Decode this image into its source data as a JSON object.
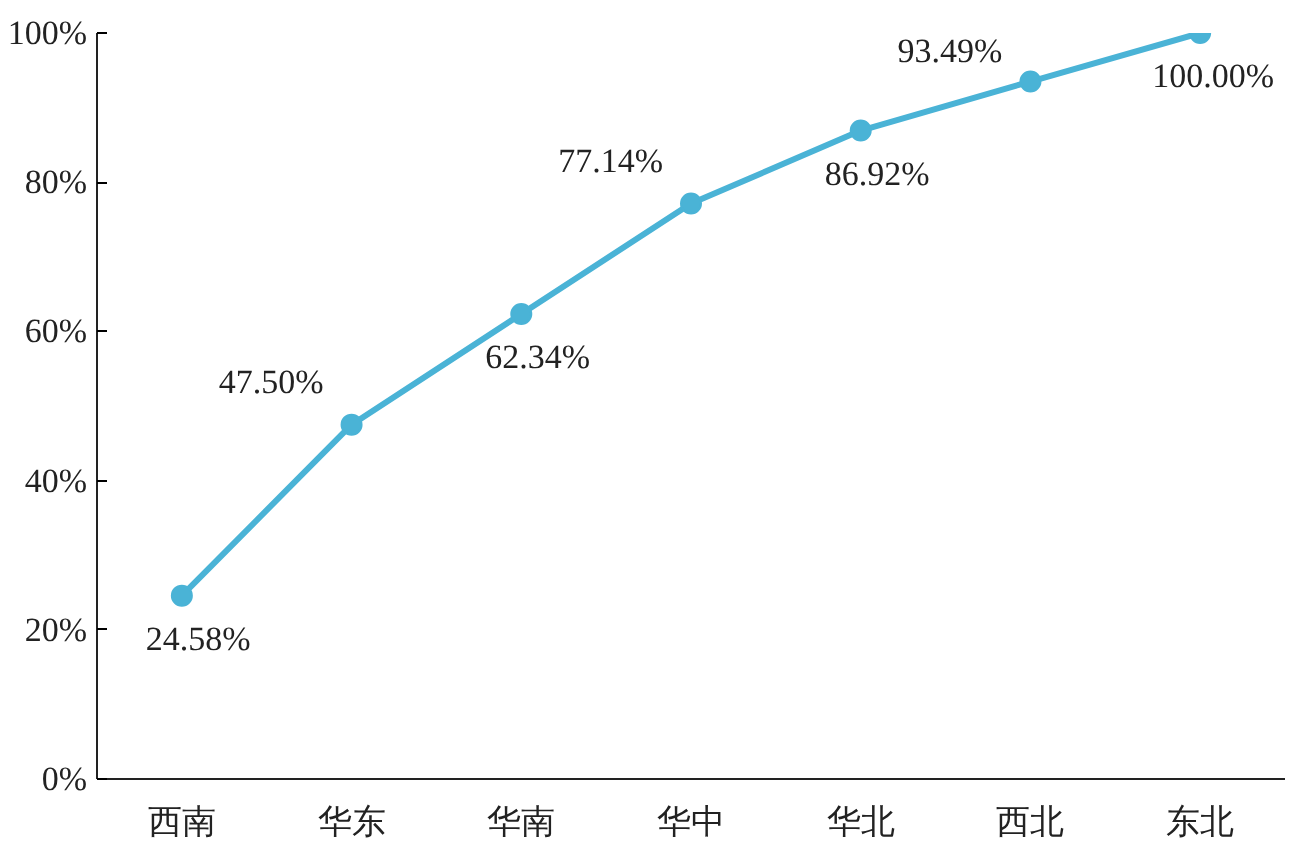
{
  "chart_data": {
    "type": "line",
    "categories": [
      "西南",
      "华东",
      "华南",
      "华中",
      "华北",
      "西北",
      "东北"
    ],
    "series": [
      {
        "color": "#4ab3d6",
        "values": [
          24.58,
          47.5,
          62.34,
          77.14,
          86.92,
          93.49,
          100.0
        ],
        "value_labels": [
          "24.58%",
          "47.50%",
          "62.34%",
          "77.14%",
          "86.92%",
          "93.49%",
          "100.00%"
        ]
      }
    ],
    "ylim": [
      0,
      100
    ],
    "yticks": [
      {
        "value": 0,
        "label": "0%"
      },
      {
        "value": 20,
        "label": "20%"
      },
      {
        "value": 40,
        "label": "40%"
      },
      {
        "value": 60,
        "label": "60%"
      },
      {
        "value": 80,
        "label": "80%"
      },
      {
        "value": 100,
        "label": "100%"
      }
    ],
    "grid": false,
    "marker": "circle",
    "line_style": "solid"
  }
}
